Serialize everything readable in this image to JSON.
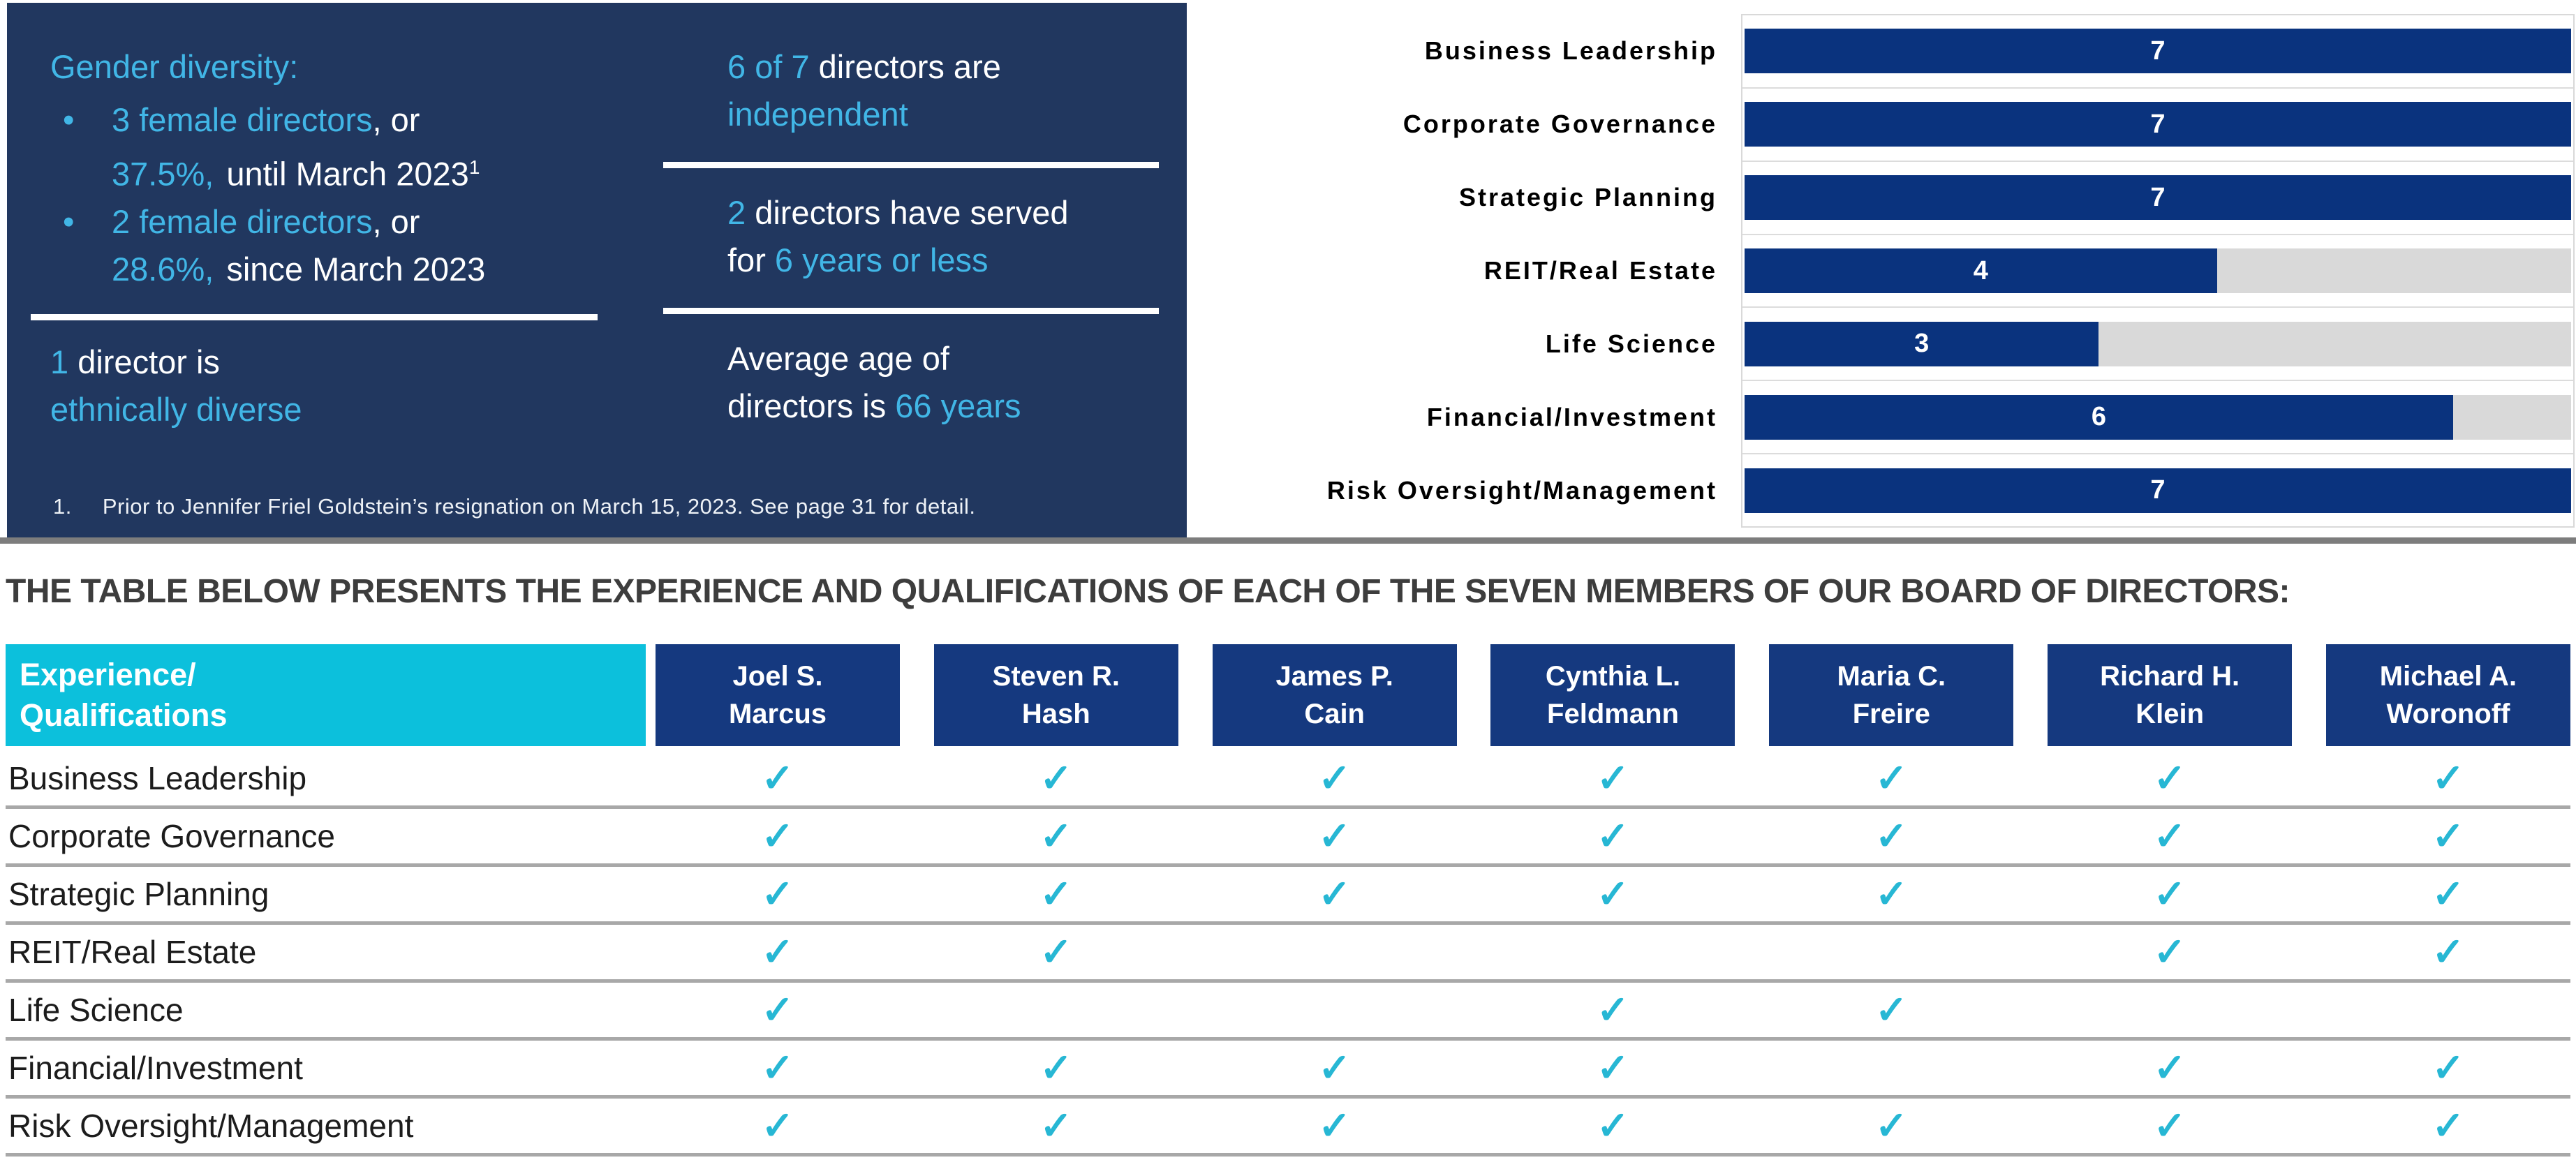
{
  "colors": {
    "info_box_navy": "#21375f",
    "accent_cyan": "#41b6e6",
    "bar_navy": "#0a337e",
    "track_gray": "#d9d9d9",
    "header_cell_cyan": "#0cc0dc",
    "header_cell_navy": "#15397f",
    "check_cyan": "#27b7d4",
    "row_separator_gray": "#a8a8a8",
    "section_rule_gray": "#7d7d7d",
    "headline_gray": "#3d3d3d"
  },
  "info_box": {
    "title": "Gender diversity:",
    "bullet1_dot": "•",
    "bullet1_l1_cyan": "3 female directors",
    "bullet1_l1_white": ", or",
    "bullet1_l2_cyan": "37.5%,",
    "bullet1_l2_white": "until March 2023",
    "bullet1_superscript": "1",
    "bullet2_dot": "•",
    "bullet2_l1_cyan": "2 female directors",
    "bullet2_l1_white": ", or",
    "bullet2_l2_cyan": "28.6%,",
    "bullet2_l2_white": "since March 2023",
    "fact_ethnic_l1_cyan": "1",
    "fact_ethnic_l1_white": " director is",
    "fact_ethnic_l2_cyan": "ethnically diverse",
    "fact_independent_l1_cyan": "6 of 7",
    "fact_independent_l1_white": " directors are",
    "fact_independent_l2_cyan": "independent",
    "fact_tenure_l1_cyan": "2",
    "fact_tenure_l1_white": " directors have served",
    "fact_tenure_l2_white": "for ",
    "fact_tenure_l2_cyan": "6 years or less",
    "fact_age_l1_white": "Average age of",
    "fact_age_l2_white": "directors is ",
    "fact_age_l2_cyan": "66 years",
    "footnote_number": "1.",
    "footnote_text": "Prior to Jennifer Friel Goldstein’s resignation on March 15, 2023. See page 31 for detail."
  },
  "chart_data": {
    "type": "bar",
    "orientation": "horizontal",
    "title": "",
    "xlabel": "",
    "ylabel": "",
    "categories": [
      "Business Leadership",
      "Corporate Governance",
      "Strategic Planning",
      "REIT/Real Estate",
      "Life Science",
      "Financial/Investment",
      "Risk Oversight/Management"
    ],
    "values": [
      7,
      7,
      7,
      4,
      3,
      6,
      7
    ],
    "value_labels": [
      "7",
      "7",
      "7",
      "4",
      "3",
      "6",
      "7"
    ],
    "xlim": [
      0,
      7
    ],
    "grid": false,
    "legend": "none"
  },
  "table": {
    "headline": "THE TABLE BELOW PRESENTS THE EXPERIENCE AND QUALIFICATIONS OF EACH OF THE SEVEN MEMBERS OF OUR BOARD OF DIRECTORS:",
    "header_label_line1": "Experience/",
    "header_label_line2": "Qualifications",
    "directors": [
      {
        "line1": "Joel S.",
        "line2": "Marcus"
      },
      {
        "line1": "Steven R.",
        "line2": "Hash"
      },
      {
        "line1": "James P.",
        "line2": "Cain"
      },
      {
        "line1": "Cynthia L.",
        "line2": "Feldmann"
      },
      {
        "line1": "Maria C.",
        "line2": "Freire"
      },
      {
        "line1": "Richard H.",
        "line2": "Klein"
      },
      {
        "line1": "Michael A.",
        "line2": "Woronoff"
      }
    ],
    "rows": [
      {
        "label": "Business Leadership",
        "checks": [
          "✓",
          "✓",
          "✓",
          "✓",
          "✓",
          "✓",
          "✓"
        ]
      },
      {
        "label": "Corporate Governance",
        "checks": [
          "✓",
          "✓",
          "✓",
          "✓",
          "✓",
          "✓",
          "✓"
        ]
      },
      {
        "label": "Strategic Planning",
        "checks": [
          "✓",
          "✓",
          "✓",
          "✓",
          "✓",
          "✓",
          "✓"
        ]
      },
      {
        "label": "REIT/Real Estate",
        "checks": [
          "✓",
          "✓",
          "",
          "",
          "",
          "✓",
          "✓"
        ]
      },
      {
        "label": "Life Science",
        "checks": [
          "✓",
          "",
          "",
          "✓",
          "✓",
          "",
          ""
        ]
      },
      {
        "label": "Financial/Investment",
        "checks": [
          "✓",
          "✓",
          "✓",
          "✓",
          "",
          "✓",
          "✓"
        ]
      },
      {
        "label": "Risk Oversight/Management",
        "checks": [
          "✓",
          "✓",
          "✓",
          "✓",
          "✓",
          "✓",
          "✓"
        ]
      }
    ]
  }
}
